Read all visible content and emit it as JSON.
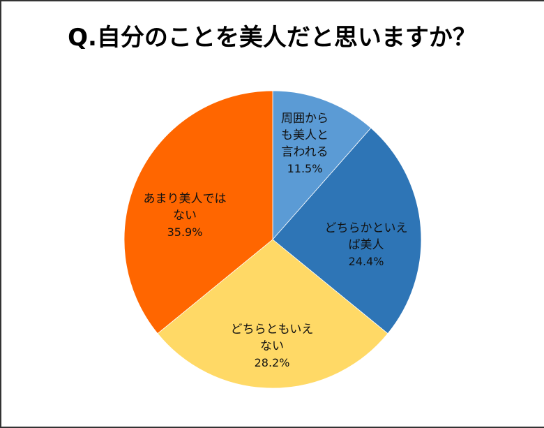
{
  "title": "Q.自分のことを美人だと思いますか？",
  "chart_data": {
    "type": "pie",
    "title": "Q.自分のことを美人だと思いますか？",
    "categories": [
      "周囲からも美人と言われる",
      "どちらかといえば美人",
      "どちらともいえない",
      "あまり美人ではない"
    ],
    "values": [
      11.5,
      24.4,
      28.2,
      35.9
    ],
    "unit": "%",
    "colors": [
      "#5B9BD5",
      "#2E75B6",
      "#FFD966",
      "#FF6600"
    ],
    "start_angle": "12 o'clock, clockwise",
    "legend": "none (data labels inside slices)"
  },
  "labels": [
    {
      "lines": [
        "周囲から",
        "も美人と",
        "言われる"
      ],
      "pct": "11.5%"
    },
    {
      "lines": [
        "どちらかといえ",
        "ば美人"
      ],
      "pct": "24.4%"
    },
    {
      "lines": [
        "どちらともいえ",
        "ない"
      ],
      "pct": "28.2%"
    },
    {
      "lines": [
        "あまり美人では",
        "ない"
      ],
      "pct": "35.9%"
    }
  ]
}
